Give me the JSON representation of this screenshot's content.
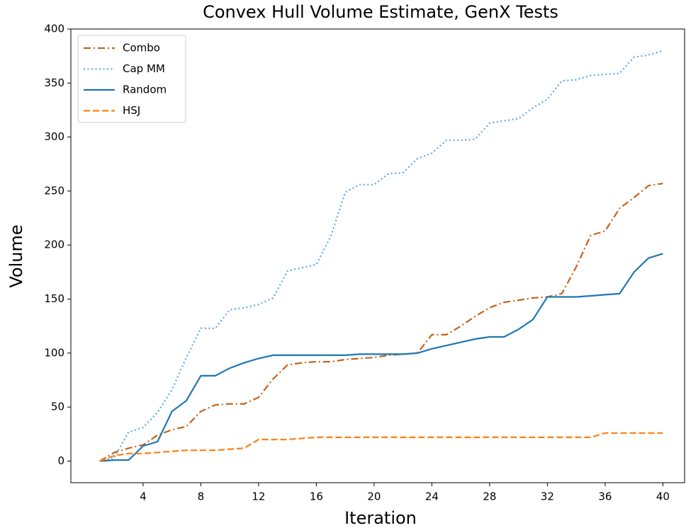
{
  "chart_data": {
    "type": "line",
    "title": "Convex Hull Volume Estimate, GenX Tests",
    "xlabel": "Iteration",
    "ylabel": "Volume",
    "x": [
      1,
      2,
      3,
      4,
      5,
      6,
      7,
      8,
      9,
      10,
      11,
      12,
      13,
      14,
      15,
      16,
      17,
      18,
      19,
      20,
      21,
      22,
      23,
      24,
      25,
      26,
      27,
      28,
      29,
      30,
      31,
      32,
      33,
      34,
      35,
      36,
      37,
      38,
      39,
      40
    ],
    "series": [
      {
        "name": "Combo",
        "color": "#c8621b",
        "linestyle": "dashdot",
        "values": [
          0,
          8,
          12,
          15,
          24,
          29,
          32,
          46,
          52,
          53,
          53,
          59,
          76,
          89,
          91,
          92,
          92,
          94,
          95,
          96,
          98,
          99,
          100,
          117,
          117,
          125,
          134,
          142,
          147,
          149,
          151,
          152,
          155,
          180,
          209,
          213,
          234,
          244,
          255,
          257
        ]
      },
      {
        "name": "Cap MM",
        "color": "#5aa9e6",
        "linestyle": "dotted",
        "values": [
          0,
          3,
          27,
          31,
          45,
          66,
          96,
          123,
          123,
          140,
          142,
          145,
          151,
          176,
          179,
          182,
          208,
          249,
          256,
          256,
          266,
          267,
          280,
          285,
          297,
          297,
          298,
          313,
          315,
          317,
          327,
          335,
          352,
          353,
          357,
          358,
          359,
          374,
          376,
          380
        ]
      },
      {
        "name": "Random",
        "color": "#1f77b4",
        "linestyle": "solid",
        "values": [
          0,
          1,
          1,
          14,
          18,
          46,
          56,
          79,
          79,
          86,
          91,
          95,
          98,
          98,
          98,
          98,
          98,
          98,
          99,
          99,
          99,
          99,
          100,
          104,
          107,
          110,
          113,
          115,
          115,
          122,
          131,
          152,
          152,
          152,
          153,
          154,
          155,
          175,
          188,
          192
        ]
      },
      {
        "name": "HSJ",
        "color": "#ff7f0e",
        "linestyle": "dashed",
        "values": [
          0,
          5,
          7,
          7,
          8,
          9,
          10,
          10,
          10,
          11,
          12,
          20,
          20,
          20,
          21,
          22,
          22,
          22,
          22,
          22,
          22,
          22,
          22,
          22,
          22,
          22,
          22,
          22,
          22,
          22,
          22,
          22,
          22,
          22,
          22,
          26,
          26,
          26,
          26,
          26
        ]
      }
    ],
    "xlim": [
      -1,
      41.5
    ],
    "xticks": [
      4,
      8,
      12,
      16,
      20,
      24,
      28,
      32,
      36,
      40
    ],
    "ylim": [
      -20,
      400
    ],
    "yticks": [
      0,
      50,
      100,
      150,
      200,
      250,
      300,
      350,
      400
    ],
    "legend": "upper left"
  }
}
